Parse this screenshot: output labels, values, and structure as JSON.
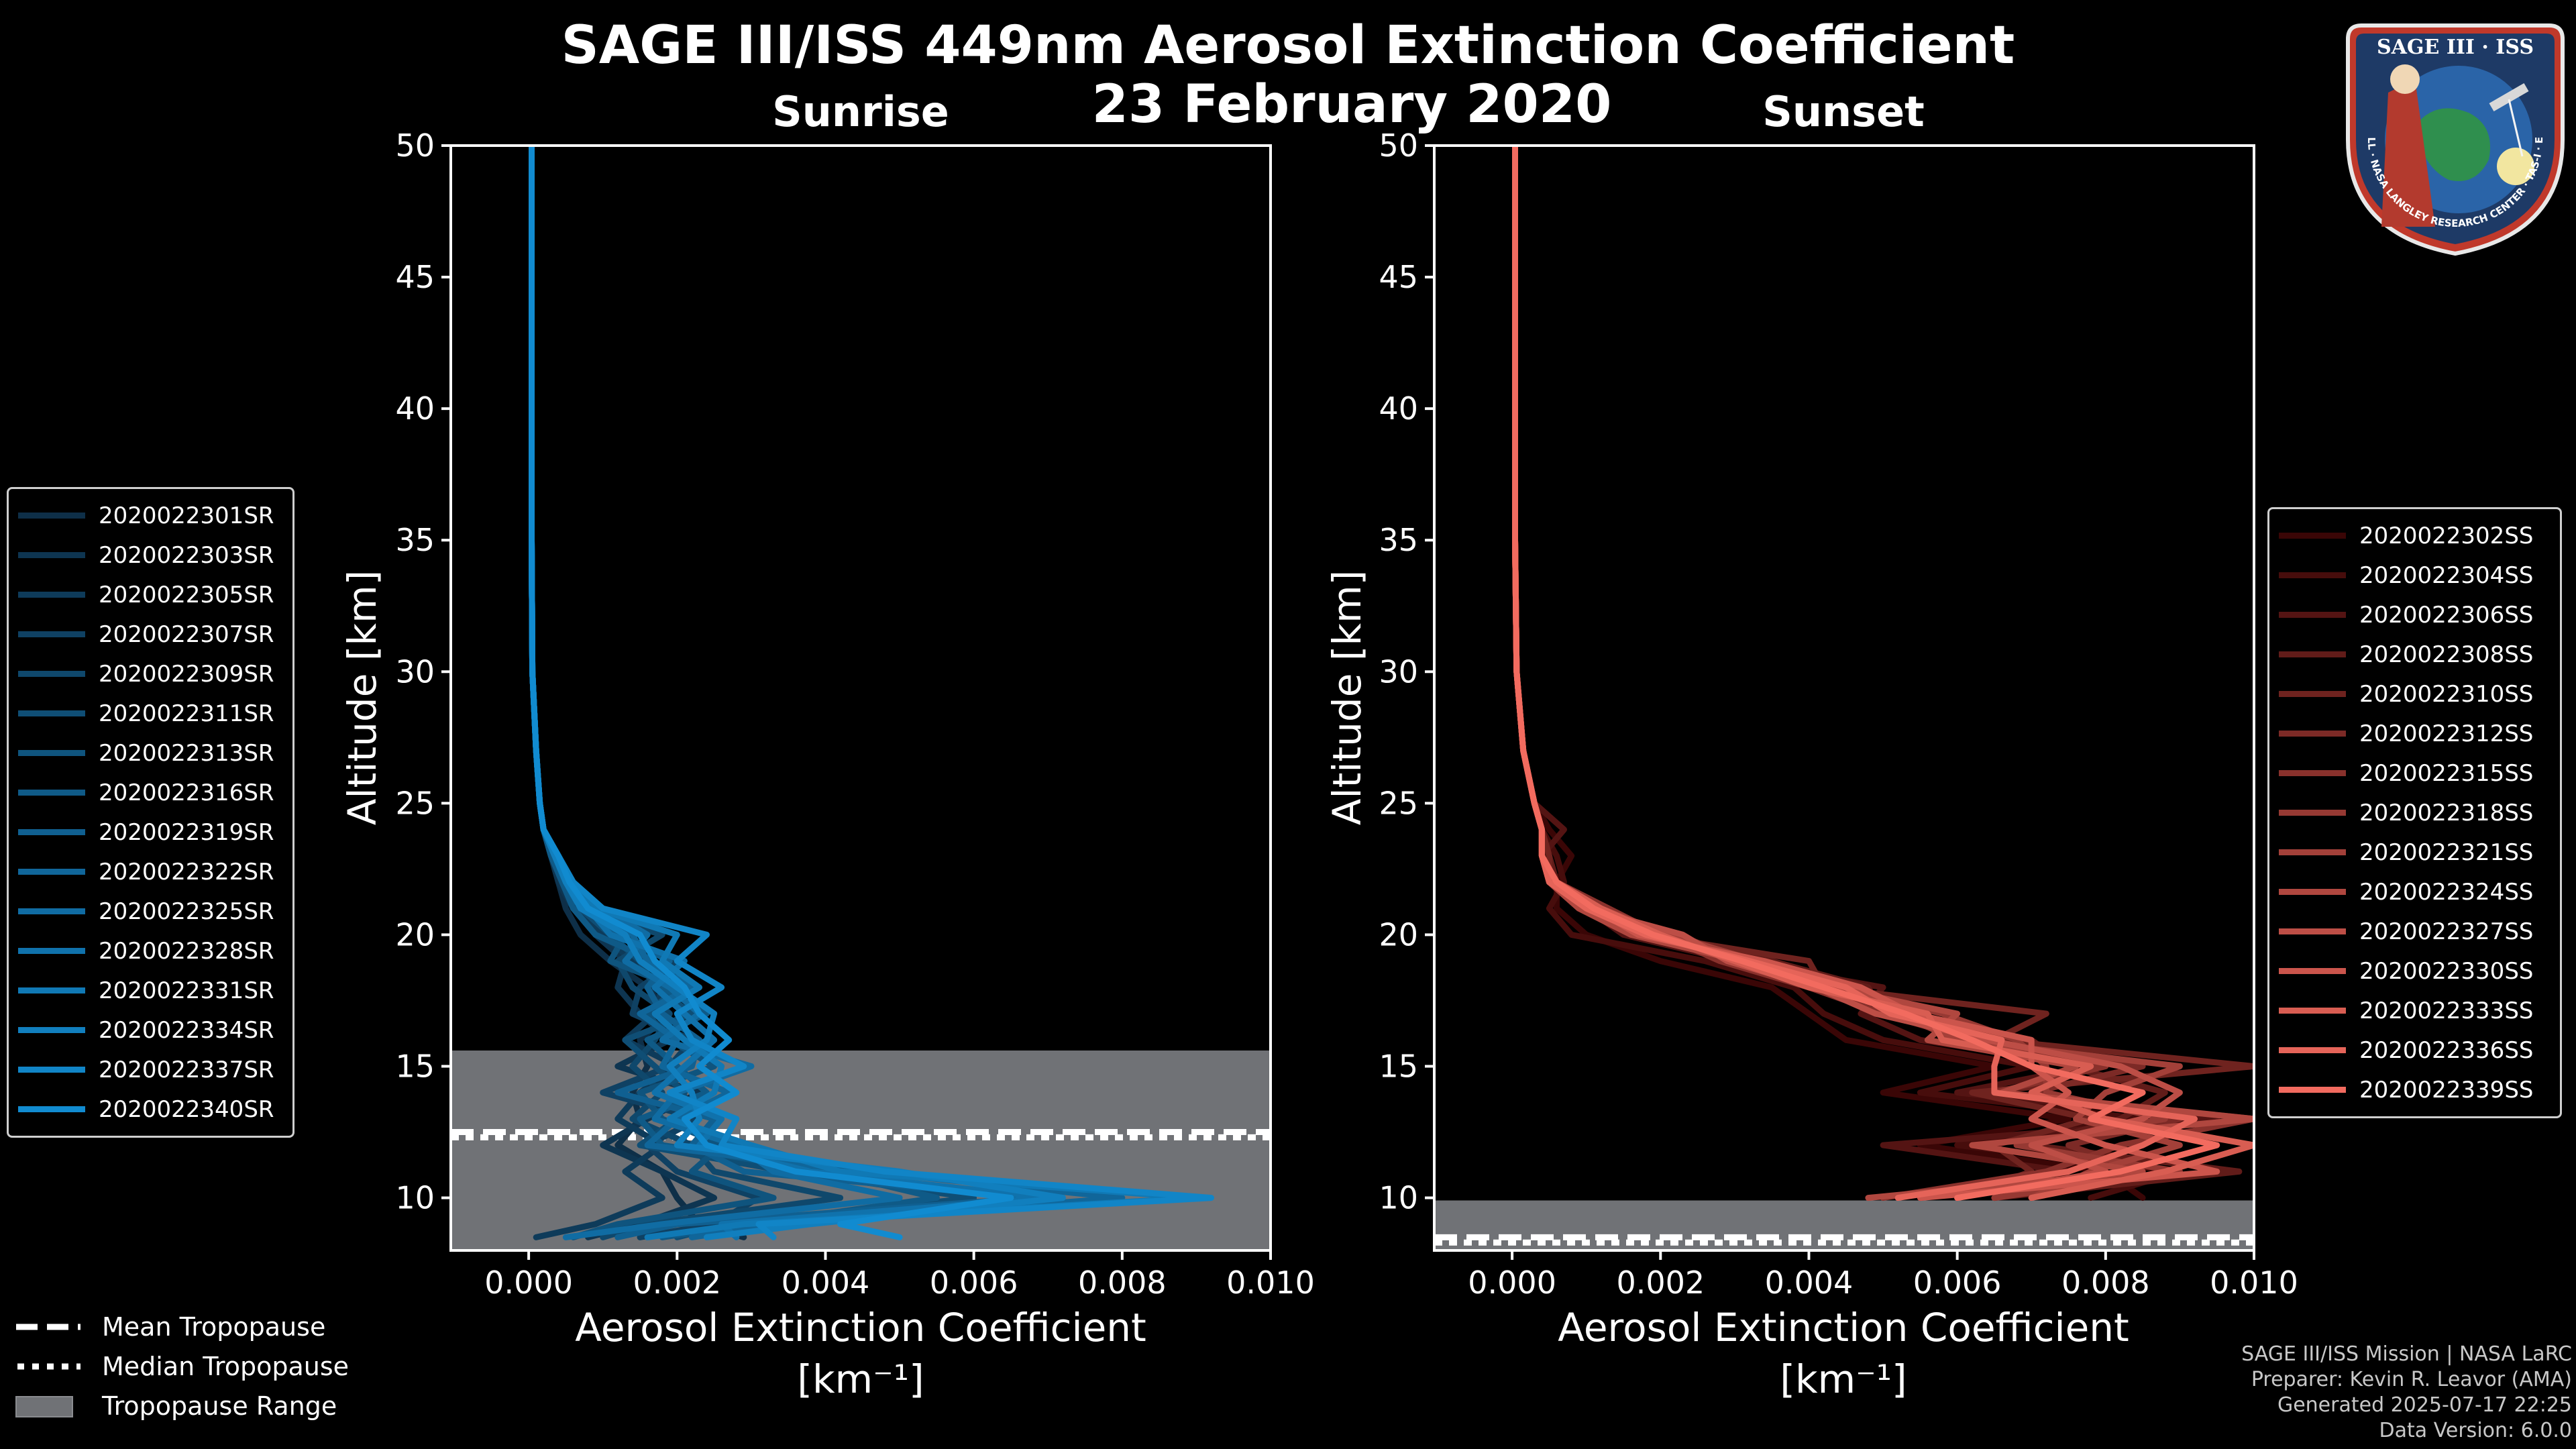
{
  "header": {
    "title_line1": "SAGE III/ISS 449nm Aerosol Extinction Coefficient",
    "title_line2": "23 February 2020"
  },
  "logo": {
    "text": "SAGE III · ISS",
    "ring_text": "BALL · NASA LANGLEY RESEARCH CENTER · TAS-I · ESA"
  },
  "footer": {
    "line1": "SAGE III/ISS Mission | NASA LaRC",
    "line2": "Preparer: Kevin R. Leavor (AMA)",
    "line3": "Generated 2025-07-17 22:25",
    "line4": "Data Version: 6.0.0"
  },
  "tropopause_legend": {
    "mean": "Mean Tropopause",
    "median": "Median Tropopause",
    "range": "Tropopause Range"
  },
  "colors": {
    "background": "#000000",
    "sunrise": [
      "#0e2f48",
      "#118bd0"
    ],
    "sunset": [
      "#3a0606",
      "#f26b5f"
    ],
    "tropopause_fill": "#707276"
  },
  "chart_data": [
    {
      "type": "line",
      "title": "Sunrise",
      "xlabel": "Aerosol Extinction Coefficient",
      "xunit": "[km⁻¹]",
      "ylabel": "Altitude [km]",
      "xlim": [
        -0.00105,
        0.01
      ],
      "ylim": [
        8,
        50
      ],
      "xticks": [
        0.0,
        0.002,
        0.004,
        0.006,
        0.008,
        0.01
      ],
      "xtick_labels": [
        "0.000",
        "0.002",
        "0.004",
        "0.006",
        "0.008",
        "0.010"
      ],
      "yticks": [
        10,
        15,
        20,
        25,
        30,
        35,
        40,
        45,
        50
      ],
      "tropopause": {
        "min": 8,
        "max": 15.6,
        "mean": 12.5,
        "median": 12.3
      },
      "series_names": [
        "2020022301SR",
        "2020022303SR",
        "2020022305SR",
        "2020022307SR",
        "2020022309SR",
        "2020022311SR",
        "2020022313SR",
        "2020022316SR",
        "2020022319SR",
        "2020022322SR",
        "2020022325SR",
        "2020022328SR",
        "2020022331SR",
        "2020022334SR",
        "2020022337SR",
        "2020022340SR"
      ],
      "profile_altitudes": [
        8.5,
        9,
        10,
        11,
        12,
        13,
        14,
        15,
        16,
        17,
        18,
        19,
        20,
        21,
        22,
        23,
        24,
        25,
        27,
        30,
        35,
        40,
        45,
        50
      ],
      "series_values": [
        [
          0.0029,
          0.0023,
          0.002,
          0.0018,
          0.0012,
          0.0015,
          0.0014,
          0.0016,
          0.0015,
          0.0019,
          0.0016,
          0.0011,
          0.0007,
          0.0005,
          0.0004,
          0.0003,
          0.0002,
          0.00015,
          0.0001,
          5e-05,
          4e-05,
          4e-05,
          4e-05,
          4e-05
        ],
        [
          0.0008,
          0.0015,
          0.0025,
          0.0018,
          0.001,
          0.0016,
          0.0023,
          0.0012,
          0.0019,
          0.0015,
          0.0012,
          0.0013,
          0.0009,
          0.0006,
          0.0004,
          0.0003,
          0.0002,
          0.00015,
          0.0001,
          5e-05,
          4e-05,
          4e-05,
          4e-05,
          4e-05
        ],
        [
          0.0001,
          0.0009,
          0.0018,
          0.0013,
          0.0018,
          0.0012,
          0.0015,
          0.002,
          0.0013,
          0.0017,
          0.0018,
          0.0014,
          0.001,
          0.0007,
          0.0005,
          0.0003,
          0.0002,
          0.00015,
          0.0001,
          5e-05,
          4e-05,
          4e-05,
          4e-05,
          4e-05
        ],
        [
          0.0015,
          0.0025,
          0.0031,
          0.002,
          0.0016,
          0.0023,
          0.001,
          0.0019,
          0.0022,
          0.0014,
          0.0015,
          0.002,
          0.0012,
          0.0008,
          0.0005,
          0.00035,
          0.0002,
          0.00015,
          0.0001,
          5e-05,
          4e-05,
          4e-05,
          4e-05,
          4e-05
        ],
        [
          0.001,
          0.0016,
          0.0042,
          0.0025,
          0.0022,
          0.0014,
          0.0018,
          0.0014,
          0.0017,
          0.0019,
          0.0014,
          0.0012,
          0.0018,
          0.0006,
          0.00045,
          0.0003,
          0.0002,
          0.00015,
          0.0001,
          5e-05,
          4e-05,
          4e-05,
          4e-05,
          4e-05
        ],
        [
          0.002,
          0.0027,
          0.006,
          0.0035,
          0.0015,
          0.002,
          0.0021,
          0.0017,
          0.0013,
          0.0022,
          0.0017,
          0.0015,
          0.0011,
          0.0007,
          0.0005,
          0.00035,
          0.0002,
          0.00015,
          0.0001,
          5e-05,
          4e-05,
          4e-05,
          4e-05,
          4e-05
        ],
        [
          0.0006,
          0.0012,
          0.0033,
          0.0022,
          0.0026,
          0.0018,
          0.0015,
          0.0025,
          0.0019,
          0.0016,
          0.002,
          0.0011,
          0.0013,
          0.0008,
          0.00055,
          0.0004,
          0.0002,
          0.00015,
          0.0001,
          5e-05,
          4e-05,
          4e-05,
          4e-05,
          4e-05
        ],
        [
          0.0018,
          0.003,
          0.0055,
          0.004,
          0.0018,
          0.0015,
          0.0024,
          0.002,
          0.0016,
          0.0024,
          0.0018,
          0.0017,
          0.0009,
          0.0006,
          0.00045,
          0.0003,
          0.0002,
          0.00015,
          0.0001,
          5e-05,
          4e-05,
          4e-05,
          4e-05,
          4e-05
        ],
        [
          0.0012,
          0.002,
          0.0068,
          0.0029,
          0.0022,
          0.0025,
          0.0012,
          0.0022,
          0.0023,
          0.0018,
          0.0016,
          0.0019,
          0.0012,
          0.0009,
          0.0005,
          0.00035,
          0.0002,
          0.00015,
          0.0001,
          5e-05,
          4e-05,
          4e-05,
          4e-05,
          4e-05
        ],
        [
          0.0022,
          0.0034,
          0.008,
          0.0045,
          0.0016,
          0.002,
          0.0027,
          0.0018,
          0.002,
          0.0015,
          0.0022,
          0.0016,
          0.0014,
          0.0007,
          0.00055,
          0.0004,
          0.0002,
          0.00015,
          0.0001,
          5e-05,
          4e-05,
          4e-05,
          4e-05,
          4e-05
        ],
        [
          0.0005,
          0.0018,
          0.005,
          0.0033,
          0.0028,
          0.0017,
          0.002,
          0.003,
          0.0018,
          0.0023,
          0.0019,
          0.0013,
          0.0016,
          0.001,
          0.0006,
          0.0004,
          0.0002,
          0.00015,
          0.0001,
          5e-05,
          4e-05,
          4e-05,
          4e-05,
          4e-05
        ],
        [
          0.0028,
          0.0026,
          0.007,
          0.0038,
          0.0023,
          0.0026,
          0.0017,
          0.0021,
          0.0025,
          0.0021,
          0.0017,
          0.0021,
          0.0011,
          0.0008,
          0.0005,
          0.00035,
          0.0002,
          0.00015,
          0.0001,
          5e-05,
          4e-05,
          4e-05,
          4e-05,
          4e-05
        ],
        [
          0.0016,
          0.0029,
          0.009,
          0.0042,
          0.003,
          0.0019,
          0.0025,
          0.0026,
          0.0021,
          0.0017,
          0.0023,
          0.0018,
          0.002,
          0.0009,
          0.0006,
          0.0004,
          0.0002,
          0.00015,
          0.0001,
          5e-05,
          4e-05,
          4e-05,
          4e-05,
          4e-05
        ],
        [
          0.0024,
          0.0038,
          0.0072,
          0.005,
          0.002,
          0.0023,
          0.0022,
          0.0019,
          0.0024,
          0.0025,
          0.002,
          0.0015,
          0.0013,
          0.0007,
          0.0005,
          0.00035,
          0.0002,
          0.00015,
          0.0001,
          5e-05,
          4e-05,
          4e-05,
          4e-05,
          4e-05
        ],
        [
          0.0033,
          0.0031,
          0.0092,
          0.0048,
          0.0026,
          0.0028,
          0.0019,
          0.0029,
          0.0022,
          0.002,
          0.0026,
          0.002,
          0.0024,
          0.001,
          0.0006,
          0.0004,
          0.0002,
          0.00015,
          0.0001,
          5e-05,
          4e-05,
          4e-05,
          4e-05,
          4e-05
        ],
        [
          0.005,
          0.0042,
          0.0065,
          0.0036,
          0.0024,
          0.0021,
          0.0028,
          0.0023,
          0.0027,
          0.0023,
          0.0021,
          0.0017,
          0.0015,
          0.0008,
          0.00055,
          0.0004,
          0.0002,
          0.00015,
          0.0001,
          5e-05,
          4e-05,
          4e-05,
          4e-05,
          4e-05
        ]
      ]
    },
    {
      "type": "line",
      "title": "Sunset",
      "xlabel": "Aerosol Extinction Coefficient",
      "xunit": "[km⁻¹]",
      "ylabel": "Altitude [km]",
      "xlim": [
        -0.00105,
        0.01
      ],
      "ylim": [
        8,
        50
      ],
      "xticks": [
        0.0,
        0.002,
        0.004,
        0.006,
        0.008,
        0.01
      ],
      "xtick_labels": [
        "0.000",
        "0.002",
        "0.004",
        "0.006",
        "0.008",
        "0.010"
      ],
      "yticks": [
        10,
        15,
        20,
        25,
        30,
        35,
        40,
        45,
        50
      ],
      "tropopause": {
        "min": 8,
        "max": 9.9,
        "mean": 8.5,
        "median": 8.3
      },
      "series_names": [
        "2020022302SS",
        "2020022304SS",
        "2020022306SS",
        "2020022308SS",
        "2020022310SS",
        "2020022312SS",
        "2020022315SS",
        "2020022318SS",
        "2020022321SS",
        "2020022324SS",
        "2020022327SS",
        "2020022330SS",
        "2020022333SS",
        "2020022336SS",
        "2020022339SS"
      ],
      "profile_altitudes": [
        10,
        11,
        12,
        13,
        14,
        15,
        16,
        17,
        18,
        19,
        20,
        21,
        22,
        23,
        24,
        25,
        27,
        30,
        35,
        40,
        45,
        50
      ],
      "series_values": [
        [
          0.0085,
          0.008,
          0.0055,
          0.0075,
          0.005,
          0.0065,
          0.0045,
          0.004,
          0.0035,
          0.002,
          0.001,
          0.0006,
          0.0006,
          0.0008,
          0.0005,
          0.0003,
          0.00015,
          6e-05,
          4e-05,
          4e-05,
          4e-05,
          4e-05
        ],
        [
          0.0078,
          0.009,
          0.006,
          0.0085,
          0.0055,
          0.007,
          0.005,
          0.0042,
          0.0038,
          0.0026,
          0.0008,
          0.0005,
          0.0007,
          0.0006,
          0.0004,
          0.0003,
          0.00015,
          6e-05,
          4e-05,
          4e-05,
          4e-05,
          4e-05
        ],
        [
          0.007,
          0.0075,
          0.005,
          0.0095,
          0.006,
          0.0078,
          0.0055,
          0.0047,
          0.005,
          0.003,
          0.0015,
          0.001,
          0.0005,
          0.0004,
          0.0007,
          0.0003,
          0.00015,
          6e-05,
          4e-05,
          4e-05,
          4e-05,
          4e-05
        ],
        [
          0.0065,
          0.0098,
          0.007,
          0.0082,
          0.0088,
          0.0075,
          0.007,
          0.005,
          0.0048,
          0.0035,
          0.002,
          0.0012,
          0.0006,
          0.0005,
          0.0004,
          0.0003,
          0.00015,
          6e-05,
          4e-05,
          4e-05,
          4e-05,
          4e-05
        ],
        [
          0.006,
          0.007,
          0.0065,
          0.0078,
          0.0062,
          0.01,
          0.0065,
          0.0072,
          0.0042,
          0.004,
          0.0018,
          0.0009,
          0.0005,
          0.0005,
          0.0004,
          0.0003,
          0.00015,
          6e-05,
          4e-05,
          4e-05,
          4e-05,
          4e-05
        ],
        [
          0.0055,
          0.0085,
          0.0075,
          0.009,
          0.007,
          0.0085,
          0.006,
          0.0055,
          0.0045,
          0.0032,
          0.0022,
          0.0011,
          0.0006,
          0.0004,
          0.0004,
          0.0003,
          0.00015,
          6e-05,
          4e-05,
          4e-05,
          4e-05,
          4e-05
        ],
        [
          0.005,
          0.0072,
          0.0082,
          0.01,
          0.0065,
          0.008,
          0.0062,
          0.005,
          0.004,
          0.0028,
          0.002,
          0.0013,
          0.0006,
          0.0004,
          0.0004,
          0.0003,
          0.00015,
          6e-05,
          4e-05,
          4e-05,
          4e-05,
          4e-05
        ],
        [
          0.0065,
          0.009,
          0.0068,
          0.0088,
          0.0072,
          0.0072,
          0.0068,
          0.0058,
          0.0044,
          0.003,
          0.0019,
          0.001,
          0.0005,
          0.0004,
          0.0004,
          0.0003,
          0.00015,
          6e-05,
          4e-05,
          4e-05,
          4e-05,
          4e-05
        ],
        [
          0.007,
          0.0078,
          0.009,
          0.0076,
          0.008,
          0.009,
          0.006,
          0.0052,
          0.0046,
          0.0033,
          0.0021,
          0.0012,
          0.0006,
          0.0004,
          0.0004,
          0.0003,
          0.00015,
          6e-05,
          4e-05,
          4e-05,
          4e-05,
          4e-05
        ],
        [
          0.0048,
          0.0085,
          0.0062,
          0.01,
          0.0066,
          0.0076,
          0.0056,
          0.006,
          0.0043,
          0.0031,
          0.0016,
          0.0009,
          0.0005,
          0.0004,
          0.0004,
          0.0003,
          0.00015,
          6e-05,
          4e-05,
          4e-05,
          4e-05,
          4e-05
        ],
        [
          0.006,
          0.008,
          0.007,
          0.0085,
          0.009,
          0.0082,
          0.0064,
          0.0049,
          0.0041,
          0.0029,
          0.0023,
          0.001,
          0.0006,
          0.0004,
          0.0004,
          0.0003,
          0.00015,
          6e-05,
          4e-05,
          4e-05,
          4e-05,
          4e-05
        ],
        [
          0.0055,
          0.0095,
          0.008,
          0.007,
          0.0075,
          0.007,
          0.007,
          0.0054,
          0.0047,
          0.0034,
          0.0017,
          0.0011,
          0.0005,
          0.0004,
          0.0004,
          0.0003,
          0.00015,
          6e-05,
          4e-05,
          4e-05,
          4e-05,
          4e-05
        ],
        [
          0.007,
          0.0088,
          0.01,
          0.008,
          0.007,
          0.0078,
          0.0058,
          0.0056,
          0.004,
          0.003,
          0.002,
          0.0012,
          0.0006,
          0.0004,
          0.0004,
          0.0003,
          0.00015,
          6e-05,
          4e-05,
          4e-05,
          4e-05,
          4e-05
        ],
        [
          0.0052,
          0.0075,
          0.0085,
          0.0092,
          0.0065,
          0.0065,
          0.0066,
          0.0051,
          0.0045,
          0.0032,
          0.0018,
          0.001,
          0.0005,
          0.0004,
          0.0004,
          0.0003,
          0.00015,
          6e-05,
          4e-05,
          4e-05,
          4e-05,
          4e-05
        ],
        [
          0.006,
          0.0082,
          0.0095,
          0.0078,
          0.0085,
          0.007,
          0.0062,
          0.0053,
          0.0042,
          0.0031,
          0.0019,
          0.0011,
          0.0006,
          0.0004,
          0.0004,
          0.0003,
          0.00015,
          6e-05,
          4e-05,
          4e-05,
          4e-05,
          4e-05
        ]
      ]
    }
  ]
}
